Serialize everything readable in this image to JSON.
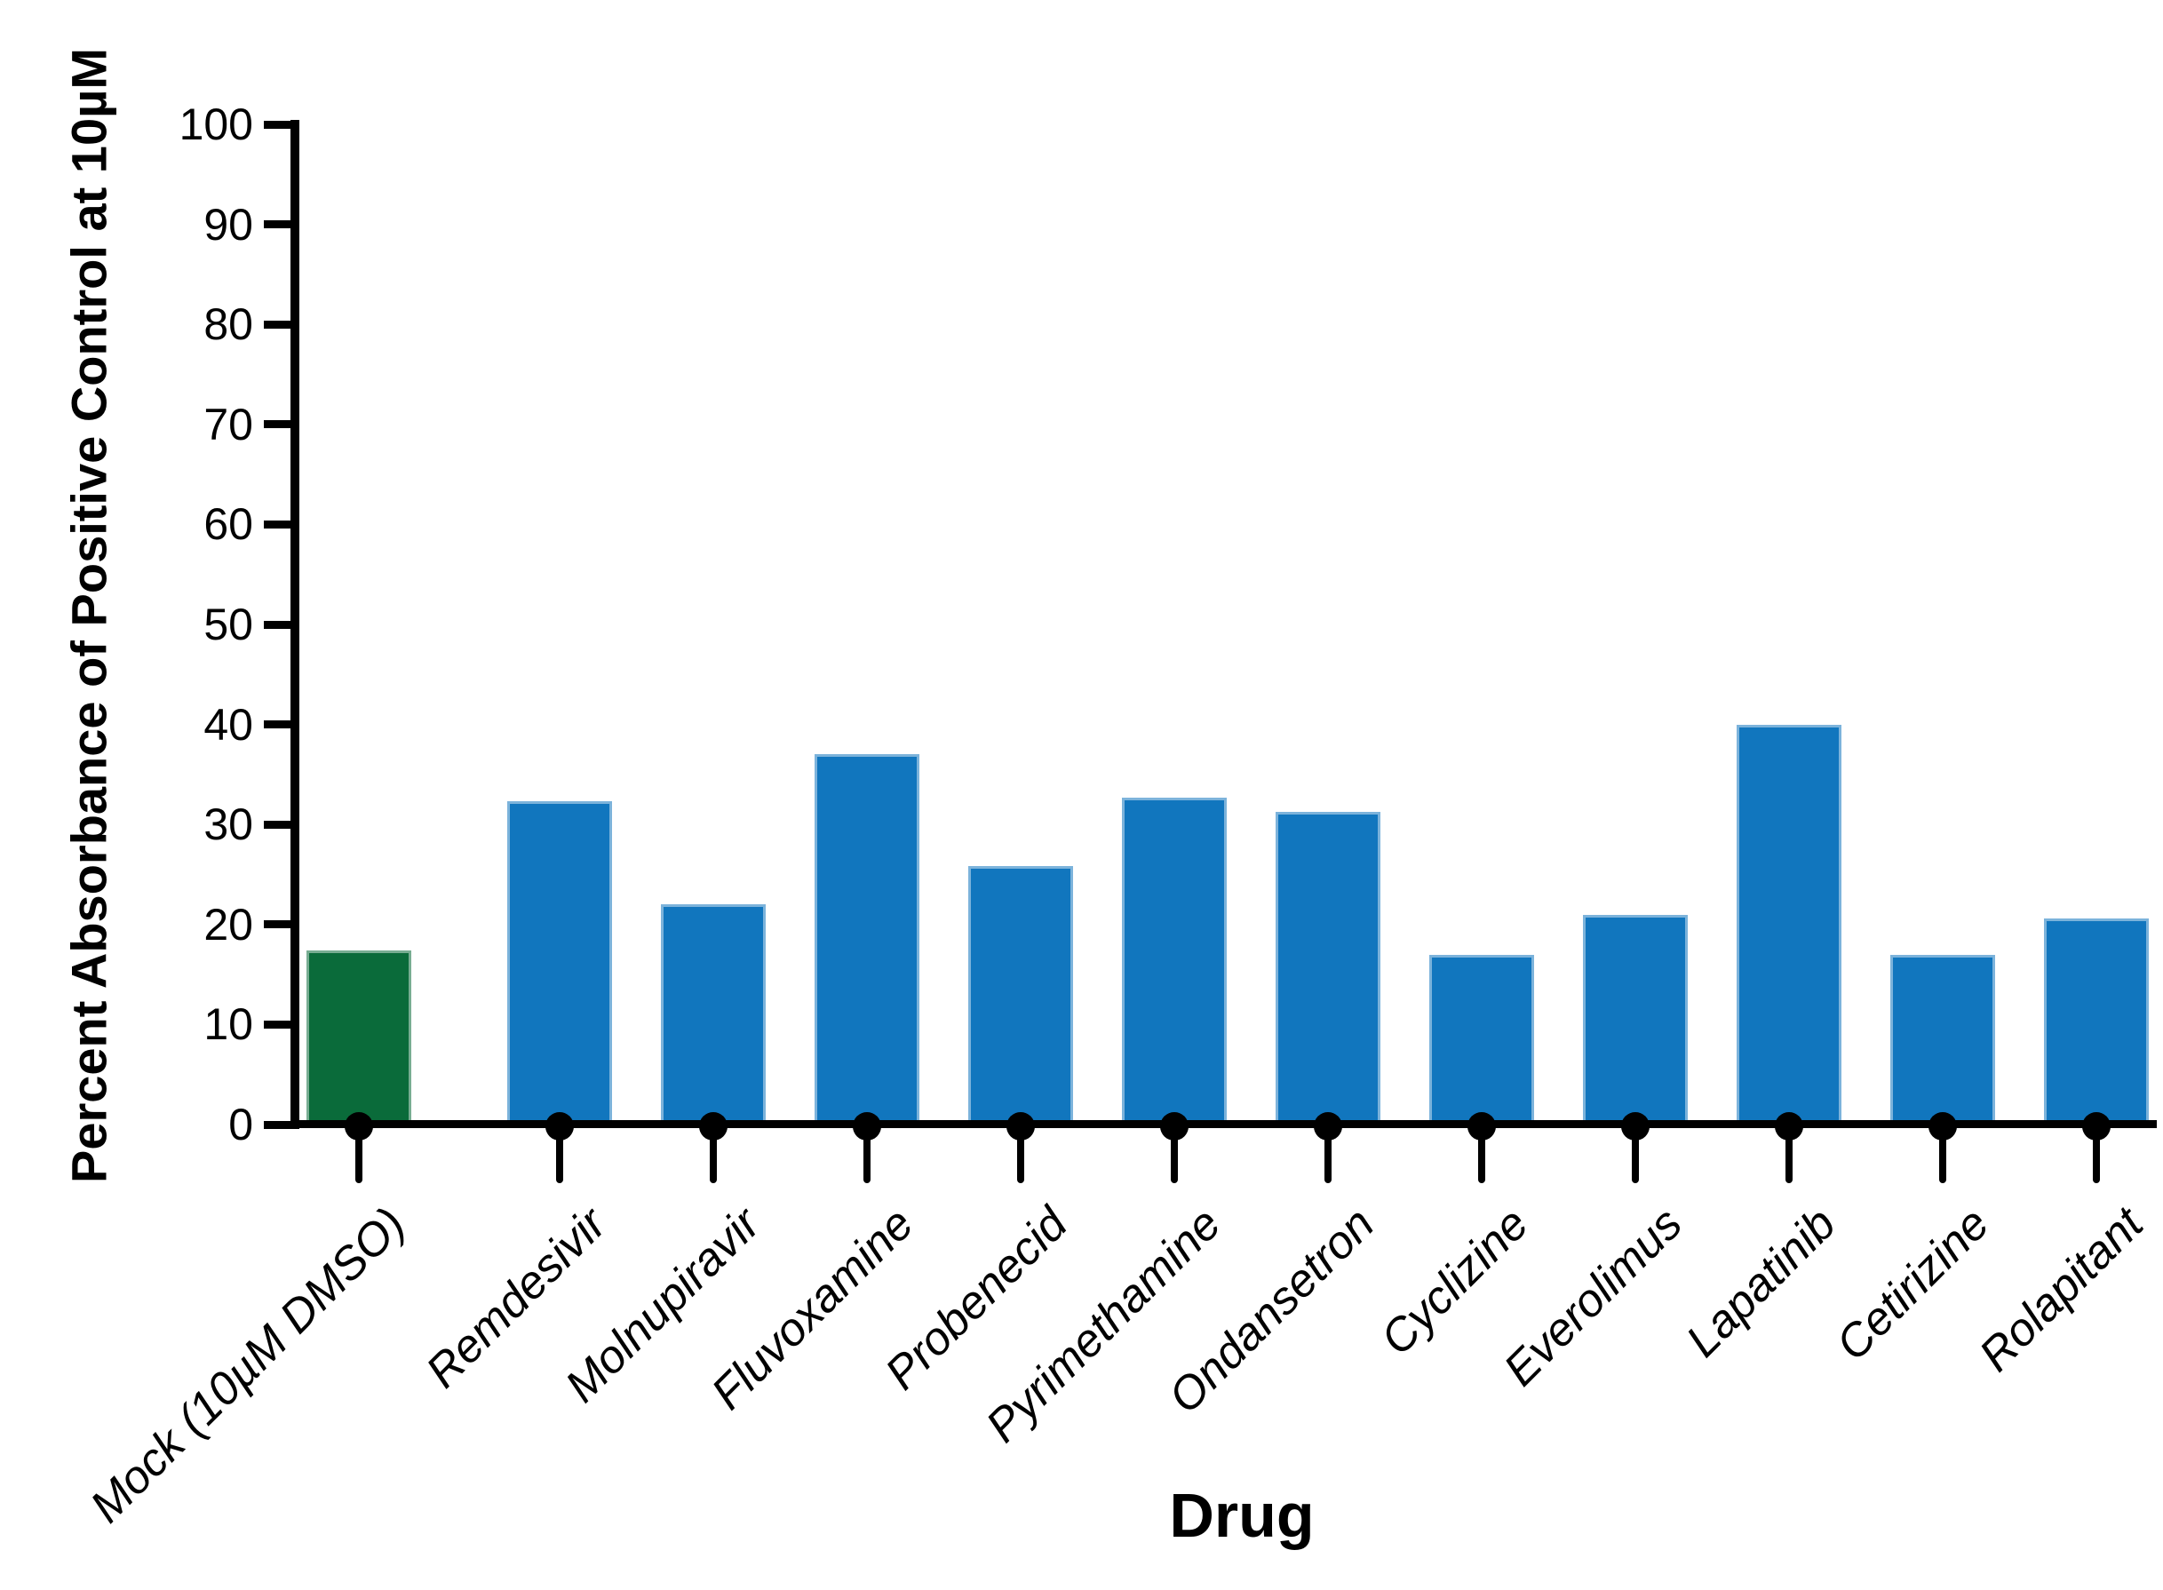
{
  "chart_data": {
    "type": "bar",
    "title": "",
    "xlabel": "Drug",
    "ylabel": "Percent Absorbance of Positive Control at 10µM",
    "ylim": [
      0,
      100
    ],
    "ytick_step": 10,
    "ytick_labels": [
      "0",
      "10",
      "20",
      "30",
      "40",
      "50",
      "60",
      "70",
      "80",
      "90",
      "100"
    ],
    "grid": false,
    "legend": null,
    "categories": [
      "Mock (10µM DMSO)",
      "Remdesivir",
      "Molnupiravir",
      "Fluvoxamine",
      "Probenecid",
      "Pyrimethamine",
      "Ondansetron",
      "Cyclizine",
      "Everolimus",
      "Lapatinib",
      "Cetirizine",
      "Rolapitant"
    ],
    "values": [
      17.4,
      32.3,
      22.0,
      37.0,
      25.8,
      32.7,
      31.3,
      17.0,
      21.0,
      40.0,
      17.0,
      20.6
    ],
    "bar_colors": [
      "#0a6b3a",
      "#1176be",
      "#1176be",
      "#1176be",
      "#1176be",
      "#1176be",
      "#1176be",
      "#1176be",
      "#1176be",
      "#1176be",
      "#1176be",
      "#1176be"
    ],
    "colors": {
      "control_bar_green": "#0a6b3a",
      "drug_bar_blue": "#1176be",
      "axis_black": "#000000",
      "background": "#ffffff"
    },
    "notes": {
      "highlighted_category": "Mock (10µM DMSO)",
      "x_tick_marker": "filled circle with stem below axis"
    }
  }
}
